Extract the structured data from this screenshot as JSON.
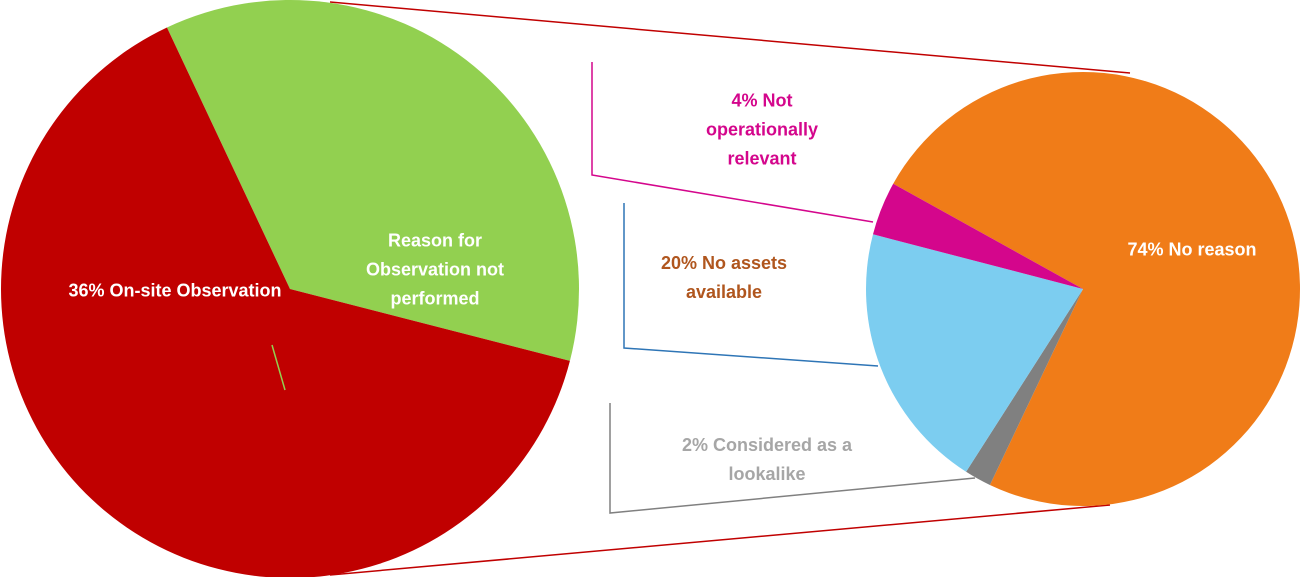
{
  "chart_data": [
    {
      "type": "pie",
      "labels": [
        "36% On-site Observation",
        "Reason for Observation not performed"
      ],
      "values": [
        36,
        64
      ],
      "colors": [
        "#92d050",
        "#c00000"
      ],
      "label_colors": [
        "#ffffff",
        "#ffffff"
      ]
    },
    {
      "type": "pie",
      "labels": [
        "74% No reason",
        "2% Considered as a lookalike",
        "20% No assets available",
        "4% Not operationally relevant"
      ],
      "values": [
        74,
        2,
        20,
        4
      ],
      "colors": [
        "#f07c18",
        "#808080",
        "#7ccdf0",
        "#d4068c"
      ],
      "label_colors": [
        "#ffffff",
        "#a6a6a6",
        "#b0561e",
        "#d4068c"
      ]
    }
  ]
}
